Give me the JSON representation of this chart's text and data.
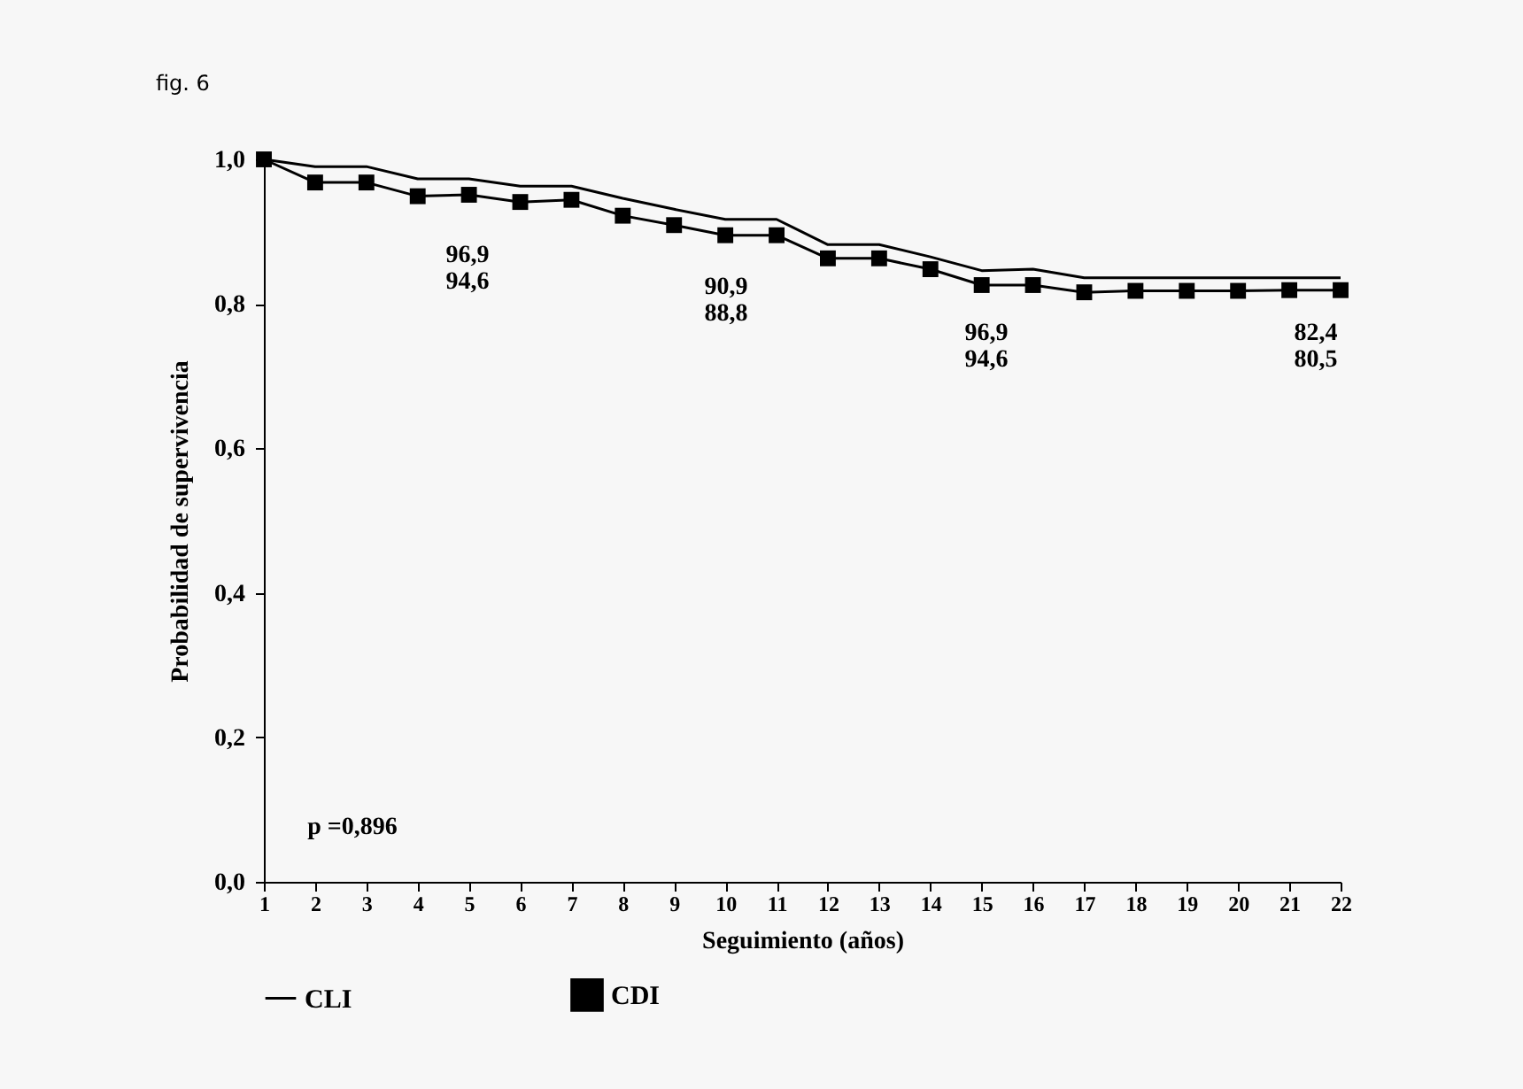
{
  "chart_data": {
    "type": "line",
    "title": "fig. 6",
    "xlabel": "Seguimiento (años)",
    "ylabel": "Probabilidad de supervivencia",
    "x": [
      1,
      2,
      3,
      4,
      5,
      6,
      7,
      8,
      9,
      10,
      11,
      12,
      13,
      14,
      15,
      16,
      17,
      18,
      19,
      20,
      21,
      22
    ],
    "xlim": [
      1,
      22
    ],
    "xticks": [
      1,
      2,
      3,
      4,
      5,
      6,
      7,
      8,
      9,
      10,
      11,
      12,
      13,
      14,
      15,
      16,
      17,
      18,
      19,
      20,
      21,
      22
    ],
    "ylim": [
      0,
      1
    ],
    "yticks": [
      {
        "value": 0,
        "label": "0,0"
      },
      {
        "value": 0.2,
        "label": "0,2"
      },
      {
        "value": 0.4,
        "label": "0,4"
      },
      {
        "value": 0.6,
        "label": "0,6"
      },
      {
        "value": 0.8,
        "label": "0,8"
      },
      {
        "value": 1,
        "label": "1,0"
      }
    ],
    "series": [
      {
        "name": "CLI",
        "color": "#000000",
        "marker": "none",
        "values": [
          1.0,
          0.99,
          0.99,
          0.973,
          0.973,
          0.963,
          0.963,
          0.946,
          0.931,
          0.917,
          0.917,
          0.882,
          0.882,
          0.865,
          0.846,
          0.848,
          0.836,
          0.836,
          0.836,
          0.836,
          0.836,
          0.836
        ]
      },
      {
        "name": "CDI",
        "color": "#000000",
        "marker": "square",
        "values": [
          1.0,
          0.968,
          0.968,
          0.949,
          0.951,
          0.941,
          0.944,
          0.922,
          0.909,
          0.895,
          0.895,
          0.863,
          0.863,
          0.848,
          0.826,
          0.826,
          0.816,
          0.818,
          0.818,
          0.818,
          0.819,
          0.819
        ]
      }
    ],
    "annotations": [
      "96,9",
      "94,6",
      "90,9",
      "88,8",
      "96,9",
      "94,6",
      "82,4",
      "80,5",
      "p =0,896"
    ],
    "legend": "bottom",
    "grid": false
  }
}
